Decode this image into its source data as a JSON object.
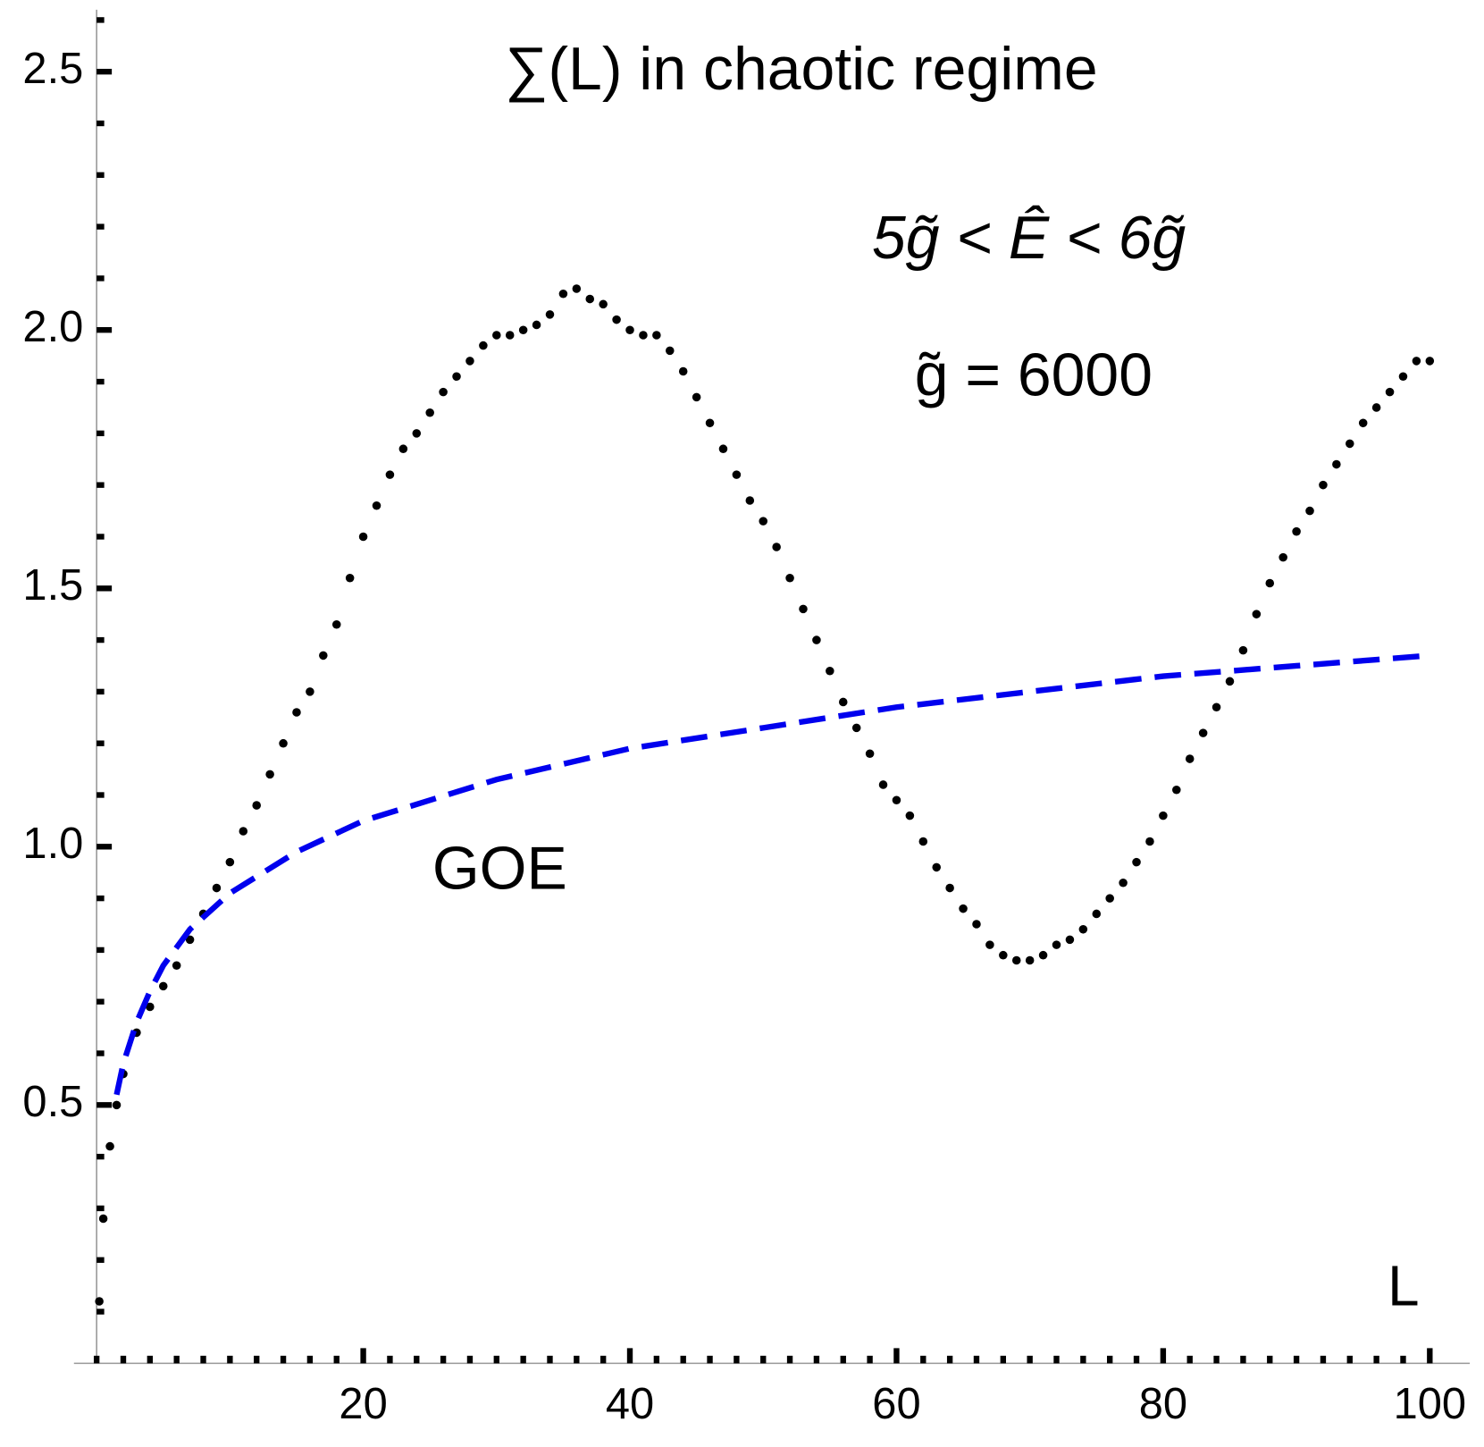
{
  "chart_data": {
    "type": "scatter",
    "title": "∑(L) in chaotic regime",
    "annotations": [
      "5g̃ < Ê < 6g̃",
      "g̃ = 6000"
    ],
    "xlabel": "L",
    "xlim": [
      -1.7,
      103
    ],
    "ylim": [
      0,
      2.62
    ],
    "xticks": [
      20,
      40,
      60,
      80,
      100
    ],
    "yticks": [
      {
        "value": 0.5,
        "label": "0.5"
      },
      {
        "value": 1,
        "label": "1.0"
      },
      {
        "value": 1.5,
        "label": "1.5"
      },
      {
        "value": 2,
        "label": "2.0"
      },
      {
        "value": 2.5,
        "label": "2.5"
      }
    ],
    "xminorticks": [
      0,
      2,
      4,
      6,
      8,
      10,
      12,
      14,
      16,
      18,
      22,
      24,
      26,
      28,
      30,
      32,
      34,
      36,
      38,
      42,
      44,
      46,
      48,
      50,
      52,
      54,
      56,
      58,
      62,
      64,
      66,
      68,
      70,
      72,
      74,
      76,
      78,
      82,
      84,
      86,
      88,
      90,
      92,
      94,
      96,
      98
    ],
    "yminorticks": [
      0.1,
      0.2,
      0.3,
      0.4,
      0.6,
      0.7,
      0.8,
      0.9,
      1.1,
      1.2,
      1.3,
      1.4,
      1.6,
      1.7,
      1.8,
      1.9,
      2.1,
      2.2,
      2.3,
      2.4,
      2.6
    ],
    "series": [
      {
        "name": null,
        "color": "#000000",
        "style": "dots",
        "x": [
          0.2,
          0.5,
          1,
          1.5,
          2,
          3,
          4,
          5,
          6,
          7,
          8,
          9,
          10,
          11,
          12,
          13,
          14,
          15,
          16,
          17,
          18,
          19,
          20,
          21,
          22,
          23,
          24,
          25,
          26,
          27,
          28,
          29,
          30,
          31,
          32,
          33,
          34,
          35,
          36,
          37,
          38,
          39,
          40,
          41,
          42,
          43,
          44,
          45,
          46,
          47,
          48,
          49,
          50,
          51,
          52,
          53,
          54,
          55,
          56,
          57,
          58,
          59,
          60,
          61,
          62,
          63,
          64,
          65,
          66,
          67,
          68,
          69,
          70,
          71,
          72,
          73,
          74,
          75,
          76,
          77,
          78,
          79,
          80,
          81,
          82,
          83,
          84,
          85,
          86,
          87,
          88,
          89,
          90,
          91,
          92,
          93,
          94,
          95,
          96,
          97,
          98,
          99,
          100
        ],
        "values": [
          0.12,
          0.28,
          0.42,
          0.5,
          0.56,
          0.64,
          0.69,
          0.73,
          0.77,
          0.82,
          0.87,
          0.92,
          0.97,
          1.03,
          1.08,
          1.14,
          1.2,
          1.26,
          1.3,
          1.37,
          1.43,
          1.52,
          1.6,
          1.66,
          1.72,
          1.77,
          1.8,
          1.84,
          1.88,
          1.91,
          1.94,
          1.97,
          1.99,
          1.99,
          2.0,
          2.01,
          2.03,
          2.07,
          2.08,
          2.06,
          2.05,
          2.02,
          2.0,
          1.99,
          1.99,
          1.96,
          1.92,
          1.87,
          1.82,
          1.77,
          1.72,
          1.67,
          1.63,
          1.58,
          1.52,
          1.46,
          1.4,
          1.34,
          1.28,
          1.23,
          1.18,
          1.12,
          1.09,
          1.06,
          1.01,
          0.96,
          0.92,
          0.88,
          0.85,
          0.81,
          0.79,
          0.78,
          0.78,
          0.79,
          0.81,
          0.82,
          0.84,
          0.87,
          0.9,
          0.93,
          0.97,
          1.01,
          1.06,
          1.11,
          1.17,
          1.22,
          1.27,
          1.32,
          1.38,
          1.45,
          1.51,
          1.56,
          1.61,
          1.65,
          1.7,
          1.74,
          1.78,
          1.82,
          1.85,
          1.88,
          1.91,
          1.94,
          1.94
        ]
      },
      {
        "name": "GOE",
        "color": "#0000ee",
        "style": "dashed",
        "x": [
          1.5,
          2,
          3,
          4,
          5,
          7,
          10,
          15,
          20,
          30,
          40,
          50,
          60,
          70,
          80,
          90,
          100
        ],
        "values": [
          0.52,
          0.58,
          0.66,
          0.72,
          0.77,
          0.84,
          0.91,
          0.99,
          1.05,
          1.13,
          1.19,
          1.23,
          1.27,
          1.3,
          1.33,
          1.35,
          1.37
        ]
      }
    ]
  }
}
